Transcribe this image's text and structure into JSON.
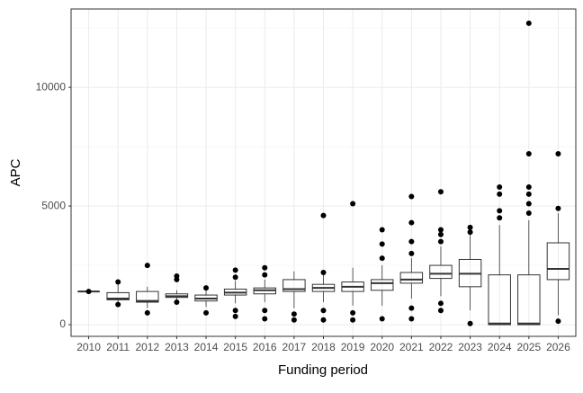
{
  "chart_data": {
    "type": "boxplot",
    "x_label": "Funding period",
    "y_label": "APC",
    "categories": [
      "2010",
      "2011",
      "2012",
      "2013",
      "2014",
      "2015",
      "2016",
      "2017",
      "2018",
      "2019",
      "2020",
      "2021",
      "2022",
      "2023",
      "2024",
      "2025",
      "2026"
    ],
    "boxes": [
      {
        "min": 1400,
        "q1": 1400,
        "median": 1400,
        "q3": 1400,
        "max": 1400,
        "outliers": [
          1400
        ]
      },
      {
        "min": 900,
        "q1": 1050,
        "median": 1100,
        "q3": 1350,
        "max": 1700,
        "outliers": [
          850,
          1800
        ]
      },
      {
        "min": 700,
        "q1": 950,
        "median": 1000,
        "q3": 1400,
        "max": 1600,
        "outliers": [
          500,
          2500
        ]
      },
      {
        "min": 1000,
        "q1": 1150,
        "median": 1200,
        "q3": 1300,
        "max": 1450,
        "outliers": [
          950,
          1900,
          2050
        ]
      },
      {
        "min": 750,
        "q1": 1000,
        "median": 1100,
        "q3": 1250,
        "max": 1450,
        "outliers": [
          500,
          1550
        ]
      },
      {
        "min": 900,
        "q1": 1250,
        "median": 1350,
        "q3": 1500,
        "max": 1850,
        "outliers": [
          350,
          600,
          2000,
          2300
        ]
      },
      {
        "min": 950,
        "q1": 1300,
        "median": 1450,
        "q3": 1550,
        "max": 1900,
        "outliers": [
          250,
          600,
          2100,
          2400
        ]
      },
      {
        "min": 700,
        "q1": 1400,
        "median": 1500,
        "q3": 1900,
        "max": 2250,
        "outliers": [
          200,
          450
        ]
      },
      {
        "min": 950,
        "q1": 1400,
        "median": 1550,
        "q3": 1700,
        "max": 2100,
        "outliers": [
          200,
          600,
          2200,
          4600
        ]
      },
      {
        "min": 800,
        "q1": 1400,
        "median": 1600,
        "q3": 1800,
        "max": 2400,
        "outliers": [
          200,
          500,
          5100
        ]
      },
      {
        "min": 800,
        "q1": 1450,
        "median": 1750,
        "q3": 1900,
        "max": 2500,
        "outliers": [
          250,
          2800,
          3400,
          4000
        ]
      },
      {
        "min": 1100,
        "q1": 1750,
        "median": 1900,
        "q3": 2200,
        "max": 2800,
        "outliers": [
          250,
          700,
          3000,
          3500,
          4300,
          5400
        ]
      },
      {
        "min": 1200,
        "q1": 1950,
        "median": 2150,
        "q3": 2500,
        "max": 3300,
        "outliers": [
          600,
          900,
          3500,
          3800,
          4000,
          5600
        ]
      },
      {
        "min": 600,
        "q1": 1600,
        "median": 2150,
        "q3": 2750,
        "max": 3800,
        "outliers": [
          50,
          3900,
          4100
        ]
      },
      {
        "min": 0,
        "q1": 0,
        "median": 50,
        "q3": 2100,
        "max": 4200,
        "outliers": [
          4500,
          4800,
          5500,
          5800
        ]
      },
      {
        "min": 0,
        "q1": 0,
        "median": 50,
        "q3": 2100,
        "max": 4400,
        "outliers": [
          4700,
          5100,
          5500,
          5800,
          7200,
          12700
        ]
      },
      {
        "min": 400,
        "q1": 1900,
        "median": 2350,
        "q3": 3450,
        "max": 4700,
        "outliers": [
          150,
          4900,
          7200
        ]
      }
    ],
    "ylim": [
      -490,
      13300
    ],
    "yticks": [
      0,
      5000,
      10000
    ],
    "y_minor_grid": [
      2500,
      7500,
      12500
    ],
    "grid": true
  }
}
